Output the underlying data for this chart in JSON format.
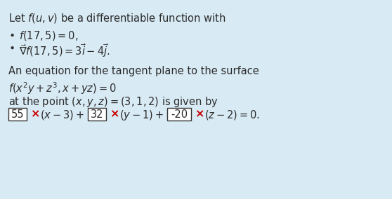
{
  "background_color": "#d8eaf4",
  "fig_width": 5.58,
  "fig_height": 2.84,
  "text_color": "#2c2c2c",
  "cross_color": "#cc0000",
  "box1": "55",
  "box2": "32",
  "box3": "-20",
  "font_size": 10.5
}
